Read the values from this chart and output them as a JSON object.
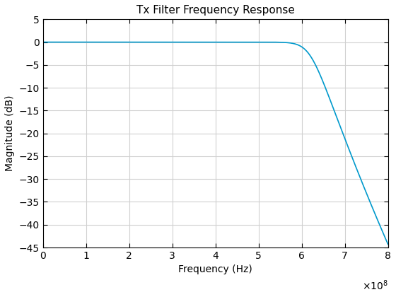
{
  "title": "Tx Filter Frequency Response",
  "xlabel": "Frequency (Hz)",
  "ylabel": "Magnitude (dB)",
  "xlim": [
    0,
    800000000.0
  ],
  "ylim": [
    -45,
    5
  ],
  "xticks": [
    0,
    100000000.0,
    200000000.0,
    300000000.0,
    400000000.0,
    500000000.0,
    600000000.0,
    700000000.0,
    800000000.0
  ],
  "yticks": [
    5,
    0,
    -5,
    -10,
    -15,
    -20,
    -25,
    -30,
    -35,
    -40,
    -45
  ],
  "line_color": "#0099CC",
  "line_width": 1.2,
  "cutoff_freq": 620000000.0,
  "filter_order": 20,
  "background_color": "#ffffff",
  "grid_color": "#d0d0d0",
  "title_fontsize": 11,
  "label_fontsize": 10,
  "tick_fontsize": 10
}
